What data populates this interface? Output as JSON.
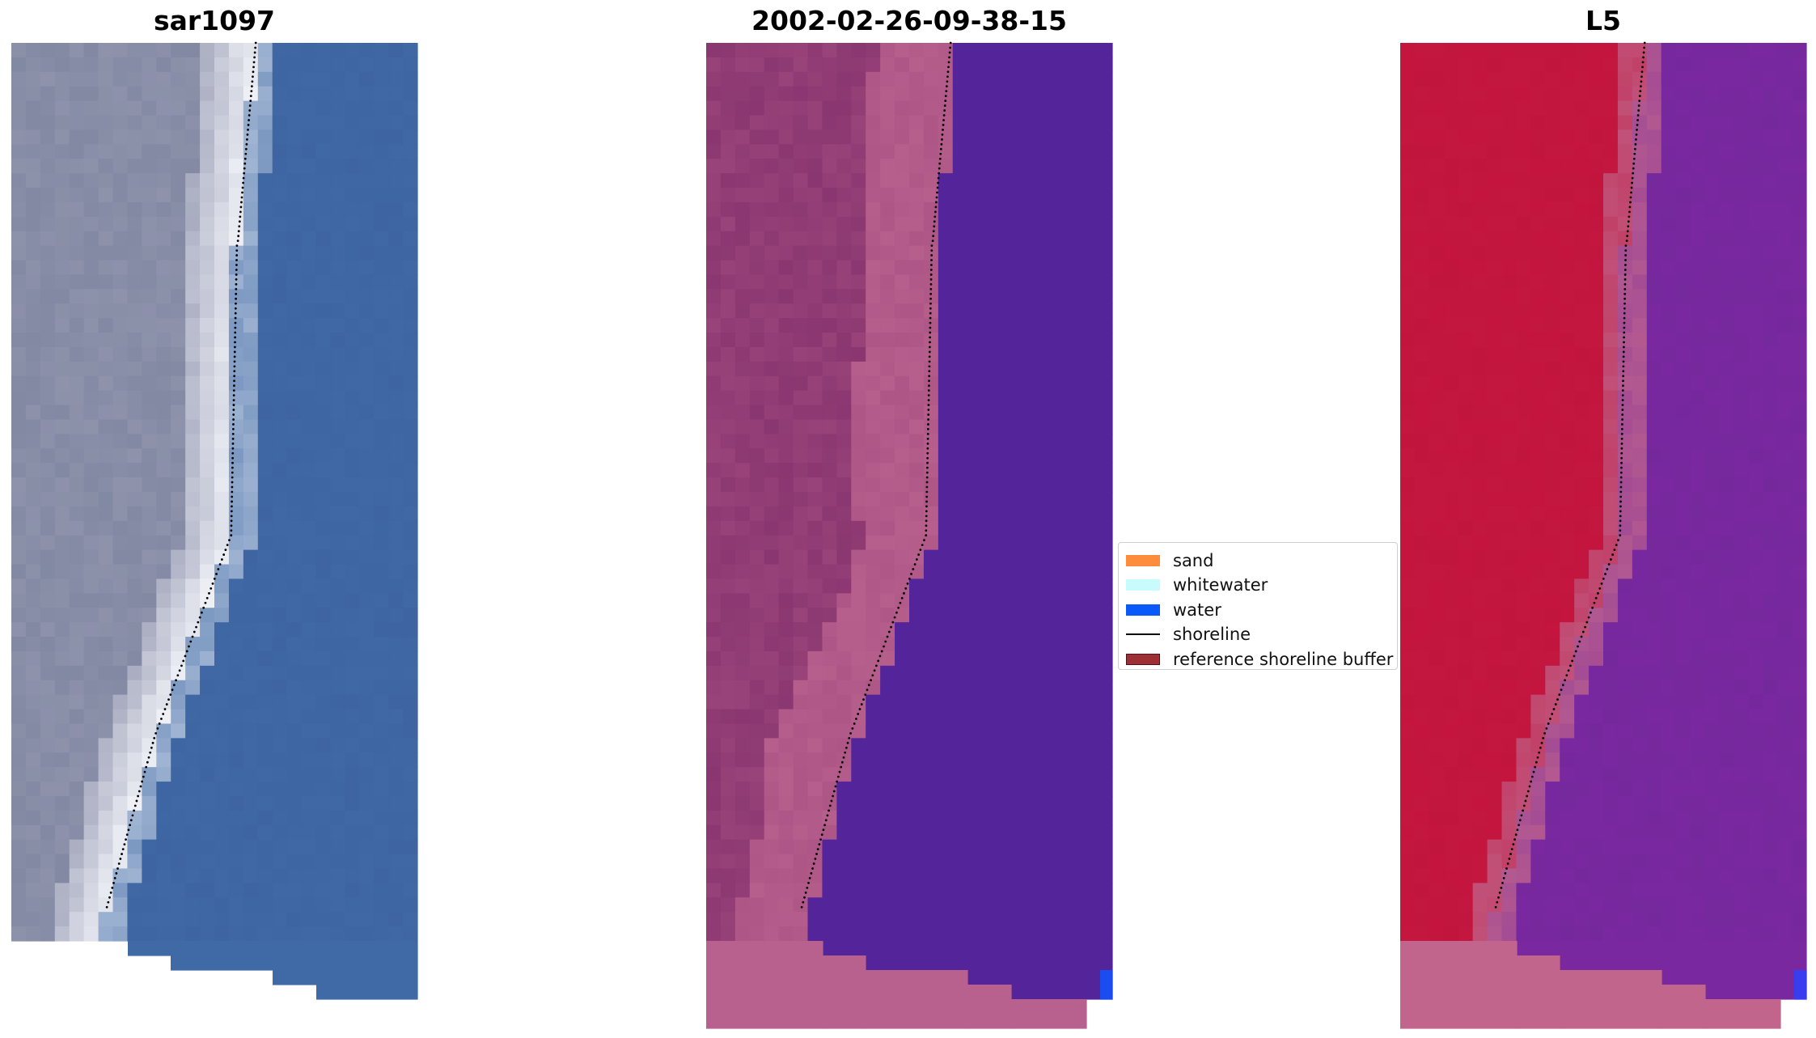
{
  "panels": [
    {
      "title": "sar1097"
    },
    {
      "title": "2002-02-26-09-38-15"
    },
    {
      "title": "L5"
    }
  ],
  "legend": {
    "items": [
      {
        "label": "sand",
        "color": "#fd8c3c",
        "type": "patch"
      },
      {
        "label": "whitewater",
        "color": "#c8fbfb",
        "type": "patch"
      },
      {
        "label": "water",
        "color": "#0a5afa",
        "type": "patch"
      },
      {
        "label": "shoreline",
        "color": "#000000",
        "type": "line"
      },
      {
        "label": "reference shoreline buffer",
        "color": "#9e2f34",
        "type": "patch"
      }
    ]
  },
  "colors": {
    "rgb_water": "#3f6aa6",
    "rgb_land": "#8f93ac",
    "rgb_beach": "#eef0f6",
    "class_land": "#8a3670",
    "class_beach": "#b9618e",
    "class_water": "#54249a",
    "class_water_pixel": "#1a4cf0",
    "index_land": "#c2143c",
    "index_transition": "#c1658c",
    "index_water": "#7a28a0",
    "shoreline": "#000000"
  }
}
